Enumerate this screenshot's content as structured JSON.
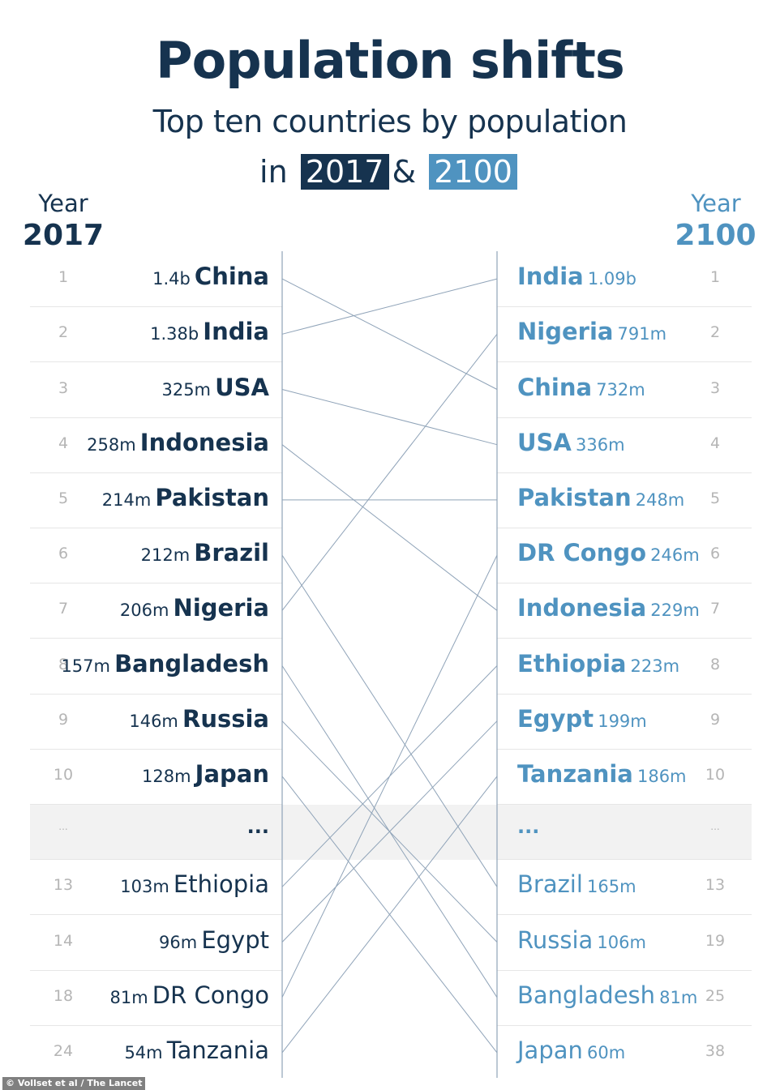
{
  "title": "Population shifts",
  "subtitle": "Top ten countries by population",
  "year_line": {
    "prefix": "in",
    "connector": "&",
    "year_a": "2017",
    "year_b": "2100"
  },
  "left_header": {
    "label": "Year",
    "year": "2017"
  },
  "right_header": {
    "label": "Year",
    "year": "2100"
  },
  "colors": {
    "dark": "#16334f",
    "light": "#4f93c0",
    "rank": "#b5b5b5",
    "line": "#8fa3b8"
  },
  "credit": "© Vollset et al / The Lancet",
  "chart_data": {
    "type": "slope",
    "title": "Population shifts",
    "subtitle": "Top ten countries by population in 2017 & 2100",
    "left": [
      {
        "rank": "1",
        "value": "1.4b",
        "country": "China",
        "top10": true
      },
      {
        "rank": "2",
        "value": "1.38b",
        "country": "India",
        "top10": true
      },
      {
        "rank": "3",
        "value": "325m",
        "country": "USA",
        "top10": true
      },
      {
        "rank": "4",
        "value": "258m",
        "country": "Indonesia",
        "top10": true
      },
      {
        "rank": "5",
        "value": "214m",
        "country": "Pakistan",
        "top10": true
      },
      {
        "rank": "6",
        "value": "212m",
        "country": "Brazil",
        "top10": true
      },
      {
        "rank": "7",
        "value": "206m",
        "country": "Nigeria",
        "top10": true
      },
      {
        "rank": "8",
        "value": "157m",
        "country": "Bangladesh",
        "top10": true
      },
      {
        "rank": "9",
        "value": "146m",
        "country": "Russia",
        "top10": true
      },
      {
        "rank": "10",
        "value": "128m",
        "country": "Japan",
        "top10": true
      },
      {
        "rank": "...",
        "value": "",
        "country": "...",
        "ellipsis": true
      },
      {
        "rank": "13",
        "value": "103m",
        "country": "Ethiopia",
        "top10": false
      },
      {
        "rank": "14",
        "value": "96m",
        "country": "Egypt",
        "top10": false
      },
      {
        "rank": "18",
        "value": "81m",
        "country": "DR Congo",
        "top10": false
      },
      {
        "rank": "24",
        "value": "54m",
        "country": "Tanzania",
        "top10": false
      }
    ],
    "right": [
      {
        "rank": "1",
        "value": "1.09b",
        "country": "India",
        "top10": true
      },
      {
        "rank": "2",
        "value": "791m",
        "country": "Nigeria",
        "top10": true
      },
      {
        "rank": "3",
        "value": "732m",
        "country": "China",
        "top10": true
      },
      {
        "rank": "4",
        "value": "336m",
        "country": "USA",
        "top10": true
      },
      {
        "rank": "5",
        "value": "248m",
        "country": "Pakistan",
        "top10": true
      },
      {
        "rank": "6",
        "value": "246m",
        "country": "DR Congo",
        "top10": true
      },
      {
        "rank": "7",
        "value": "229m",
        "country": "Indonesia",
        "top10": true
      },
      {
        "rank": "8",
        "value": "223m",
        "country": "Ethiopia",
        "top10": true
      },
      {
        "rank": "9",
        "value": "199m",
        "country": "Egypt",
        "top10": true
      },
      {
        "rank": "10",
        "value": "186m",
        "country": "Tanzania",
        "top10": true
      },
      {
        "rank": "...",
        "value": "",
        "country": "...",
        "ellipsis": true
      },
      {
        "rank": "13",
        "value": "165m",
        "country": "Brazil",
        "top10": false
      },
      {
        "rank": "19",
        "value": "106m",
        "country": "Russia",
        "top10": false
      },
      {
        "rank": "25",
        "value": "81m",
        "country": "Bangladesh",
        "top10": false
      },
      {
        "rank": "38",
        "value": "60m",
        "country": "Japan",
        "top10": false
      }
    ]
  }
}
